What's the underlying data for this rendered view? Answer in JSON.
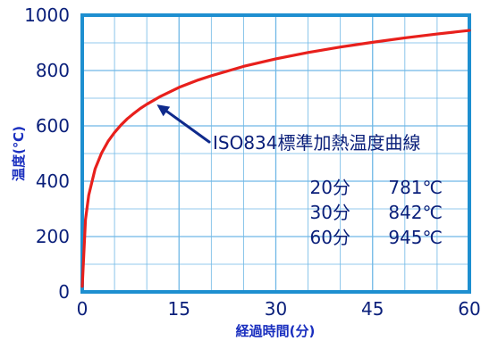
{
  "chart_data": {
    "type": "line",
    "xlabel": "経過時間(分)",
    "ylabel": "温度(℃)",
    "xlim": [
      0,
      60
    ],
    "ylim": [
      0,
      1000
    ],
    "x_ticks": [
      "0",
      "15",
      "30",
      "45",
      "60"
    ],
    "y_ticks": [
      "0",
      "200",
      "400",
      "600",
      "800",
      "1000"
    ],
    "grid": true,
    "series": [
      {
        "color": "#e8201c",
        "x": [
          0,
          0.5,
          1,
          2,
          3,
          4,
          5,
          6,
          7,
          8,
          9,
          10,
          12,
          15,
          18,
          20,
          25,
          30,
          35,
          40,
          45,
          50,
          55,
          60
        ],
        "y": [
          20,
          261,
          349,
          445,
          502,
          544,
          576,
          603,
          626,
          645,
          663,
          678,
          705,
          739,
          766,
          781,
          815,
          842,
          865,
          885,
          902,
          918,
          932,
          945
        ]
      }
    ],
    "annotation": {
      "text": "ISO834標準加熱温度曲線",
      "arrow_target": {
        "x": 11,
        "y": 690
      }
    },
    "table": [
      {
        "time": "20分",
        "temp": "781℃"
      },
      {
        "time": "30分",
        "temp": "842℃"
      },
      {
        "time": "60分",
        "temp": "945℃"
      }
    ]
  },
  "colors": {
    "frame": "#1e8fd0",
    "grid": "#6fb8e6",
    "curve": "#e8201c",
    "arrow": "#0f2a8c",
    "text": "#0a1f7a"
  }
}
